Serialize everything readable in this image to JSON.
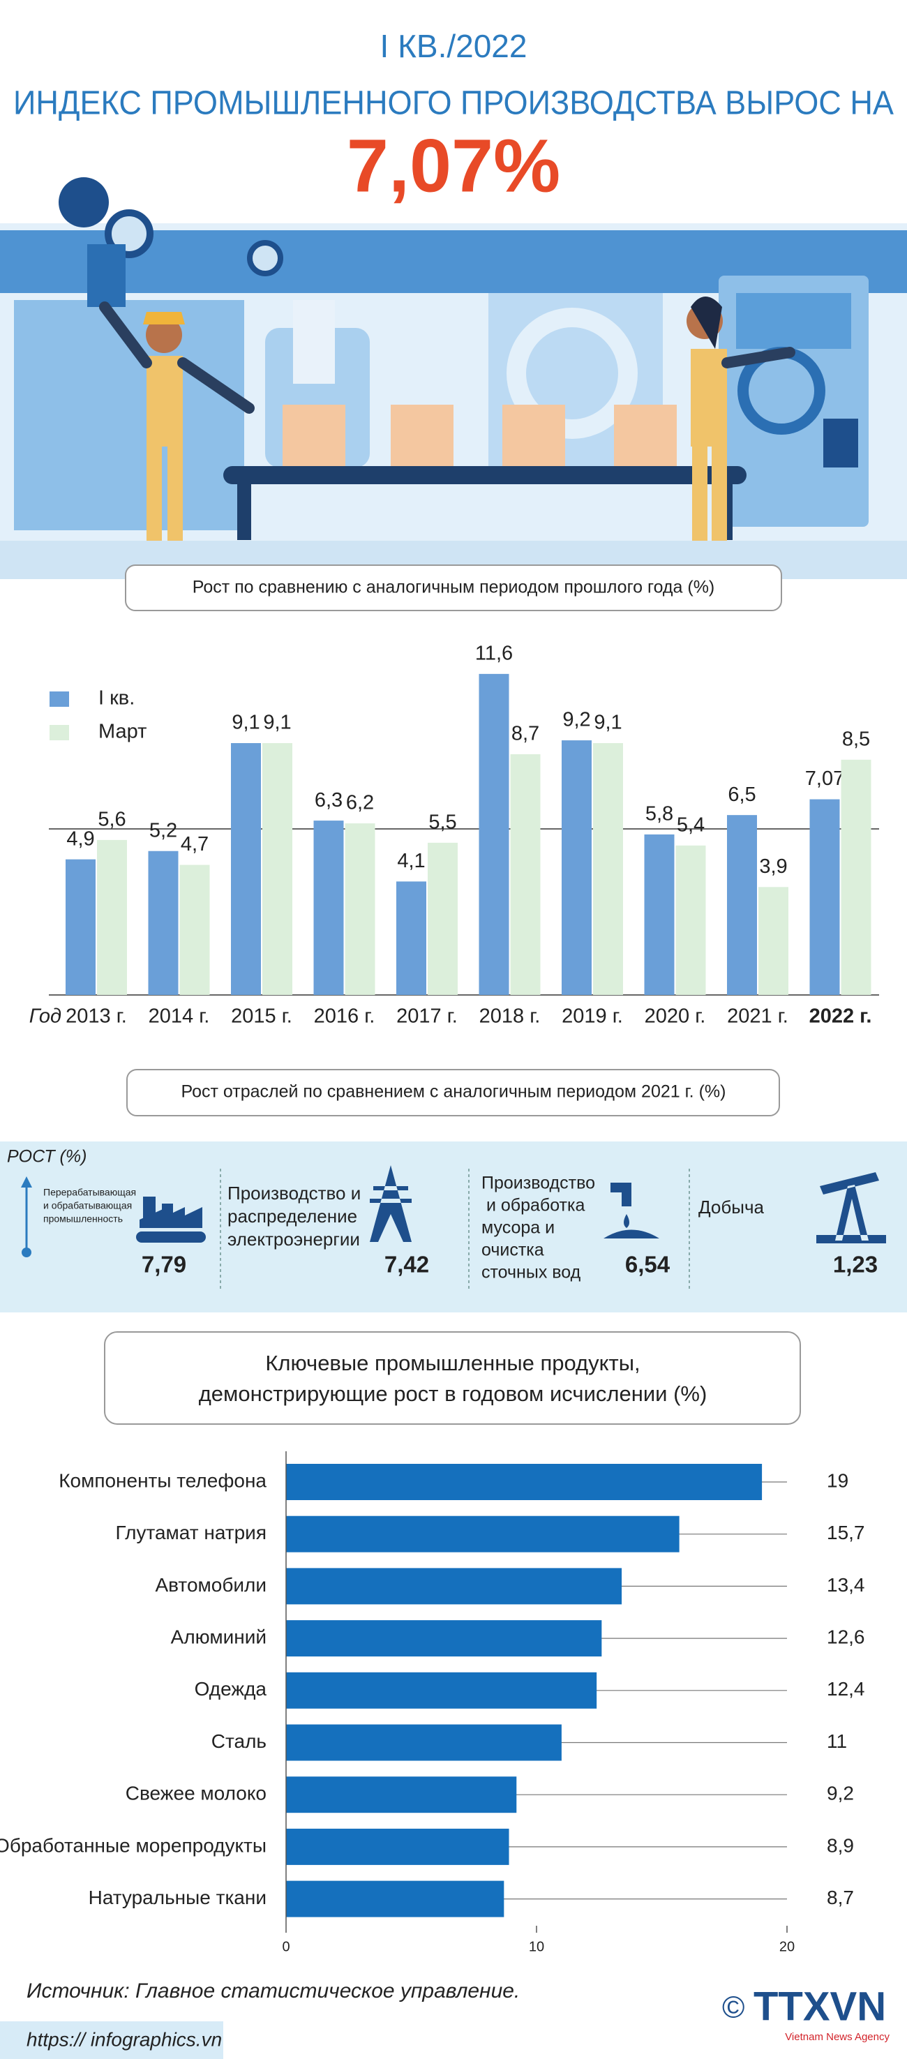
{
  "header": {
    "kicker": "I КВ./2022",
    "title": "ИНДЕКС ПРОМЫШЛЕННОГО ПРОИЗВОДСТВА ВЫРОС НА",
    "highlight": "7,07%"
  },
  "chart_data": [
    {
      "type": "bar",
      "title": "Рост по сравнению с аналогичным периодом прошлого года (%)",
      "xlabel": "Год",
      "categories": [
        "2013 г.",
        "2014 г.",
        "2015 г.",
        "2016 г.",
        "2017 г.",
        "2018 г.",
        "2019 г.",
        "2020 г.",
        "2021 г.",
        "2022 г."
      ],
      "series": [
        {
          "name": "I кв.",
          "color": "#6a9fd8",
          "values": [
            4.9,
            5.2,
            9.1,
            6.3,
            4.1,
            11.6,
            9.2,
            5.8,
            6.5,
            7.07
          ],
          "value_labels": [
            "4,9",
            "5,2",
            "9,1",
            "6,3",
            "4,1",
            "11,6",
            "9,2",
            "5,8",
            "6,5",
            "7,07"
          ]
        },
        {
          "name": "Март",
          "color": "#dcefdb",
          "values": [
            5.6,
            4.7,
            9.1,
            6.2,
            5.5,
            8.7,
            9.1,
            5.4,
            3.9,
            8.5
          ],
          "value_labels": [
            "5,6",
            "4,7",
            "9,1",
            "6,2",
            "5,5",
            "8,7",
            "9,1",
            "5,4",
            "3,9",
            "8,5"
          ]
        }
      ],
      "ylim": [
        0,
        12
      ],
      "reference_line": 6,
      "legend": "upper-left"
    },
    {
      "type": "hbar",
      "title_lines": [
        "Ключевые промышленные продукты,",
        "демонстрирующие рост в годовом исчислении (%)"
      ],
      "categories": [
        "Компоненты телефона",
        "Глутамат натрия",
        "Автомобили",
        "Алюминий",
        "Одежда",
        "Сталь",
        "Свежее молоко",
        "Обработанные морепродукты",
        "Натуральные ткани"
      ],
      "values": [
        19,
        15.7,
        13.4,
        12.6,
        12.4,
        11,
        9.2,
        8.9,
        8.7
      ],
      "value_labels": [
        "19",
        "15,7",
        "13,4",
        "12,6",
        "12,4",
        "11",
        "9,2",
        "8,9",
        "8,7"
      ],
      "color": "#1570bd",
      "xlim": [
        0,
        20
      ],
      "xticks": [
        0,
        10,
        20
      ]
    }
  ],
  "sectors": {
    "title": "Рост отраслей по сравнением с аналогичным периодом 2021 г. (%)",
    "axis_label": "РОСТ (%)",
    "items": [
      {
        "label_lines": [
          "Перерабатывающая",
          "и обрабатывающая",
          "промышленность"
        ],
        "value": "7,79"
      },
      {
        "label_lines": [
          "Производство и",
          "распределение",
          "электроэнергии"
        ],
        "value": "7,42"
      },
      {
        "label_lines": [
          "Производство",
          " и обработка",
          "мусора и",
          "очистка",
          "сточных вод"
        ],
        "value": "6,54"
      },
      {
        "label_lines": [
          "Добыча"
        ],
        "value": "1,23"
      }
    ]
  },
  "footer": {
    "source": "Источник: Главное статистическое управление.",
    "url": "https:// infographics.vn",
    "logo_symbol": "©",
    "logo": "TTXVN",
    "agency": "Vietnam News Agency"
  }
}
